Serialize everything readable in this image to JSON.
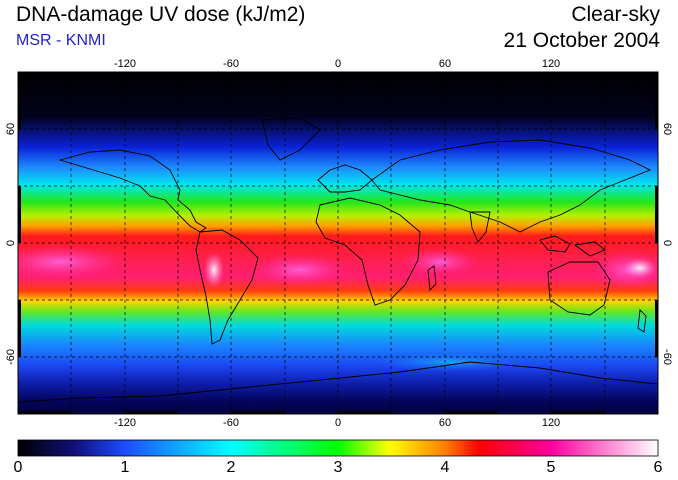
{
  "header": {
    "title": "DNA-damage UV dose (kJ/m2)",
    "source": "MSR - KNMI",
    "condition": "Clear-sky",
    "date": "21 October 2004"
  },
  "map": {
    "lon_ticks": [
      "-120",
      "-60",
      "0",
      "60",
      "120"
    ],
    "lat_ticks": [
      "60",
      "0",
      "-60"
    ]
  },
  "colorbar": {
    "ticks": [
      "0",
      "1",
      "2",
      "3",
      "4",
      "5",
      "6"
    ],
    "min": 0,
    "max": 6
  }
}
